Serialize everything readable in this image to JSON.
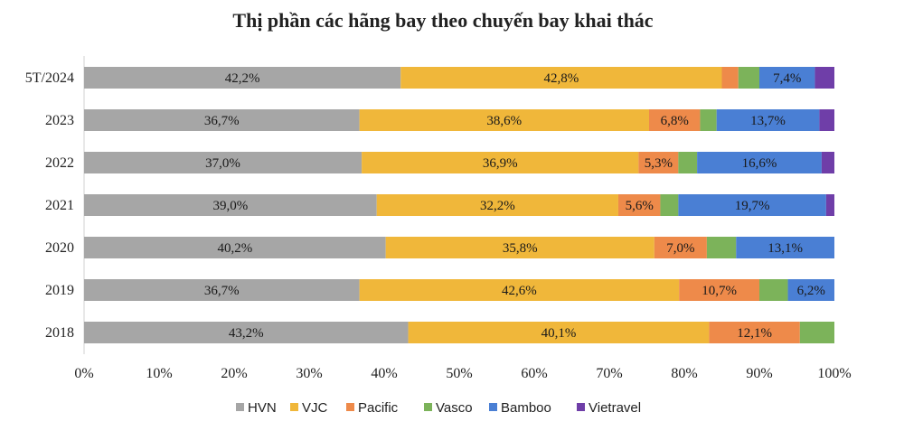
{
  "chart_data": {
    "type": "bar",
    "orientation": "horizontal",
    "stacked": true,
    "title": "Thị phần các hãng bay theo chuyến bay khai thác",
    "categories": [
      "5T/2024",
      "2023",
      "2022",
      "2021",
      "2020",
      "2019",
      "2018"
    ],
    "xlim": [
      0,
      100
    ],
    "x_ticks": [
      "0%",
      "10%",
      "20%",
      "30%",
      "40%",
      "50%",
      "60%",
      "70%",
      "80%",
      "90%",
      "100%"
    ],
    "legend_position": "bottom",
    "series": [
      {
        "name": "HVN",
        "color": "#a6a6a6",
        "values": [
          42.2,
          36.7,
          37.0,
          39.0,
          40.2,
          36.7,
          43.2
        ],
        "labels": [
          "42,2%",
          "36,7%",
          "37,0%",
          "39,0%",
          "40,2%",
          "36,7%",
          "43,2%"
        ]
      },
      {
        "name": "VJC",
        "color": "#f0b73a",
        "values": [
          42.8,
          38.6,
          36.9,
          32.2,
          35.8,
          42.6,
          40.1
        ],
        "labels": [
          "42,8%",
          "38,6%",
          "36,9%",
          "32,2%",
          "35,8%",
          "42,6%",
          "40,1%"
        ]
      },
      {
        "name": "Pacific",
        "color": "#ee8a4a",
        "values": [
          2.2,
          6.8,
          5.3,
          5.6,
          7.0,
          10.7,
          12.1
        ],
        "labels": [
          "",
          "6,8%",
          "5,3%",
          "5,6%",
          "7,0%",
          "10,7%",
          "12,1%"
        ]
      },
      {
        "name": "Vasco",
        "color": "#7cb35a",
        "values": [
          2.8,
          2.2,
          2.5,
          2.4,
          3.9,
          3.8,
          4.6
        ],
        "labels": [
          "",
          "",
          "",
          "",
          "",
          "",
          ""
        ]
      },
      {
        "name": "Bamboo",
        "color": "#4a7fd4",
        "values": [
          7.4,
          13.7,
          16.6,
          19.7,
          13.1,
          6.2,
          0
        ],
        "labels": [
          "7,4%",
          "13,7%",
          "16,6%",
          "19,7%",
          "13,1%",
          "6,2%",
          ""
        ]
      },
      {
        "name": "Vietravel",
        "color": "#6f3ea8",
        "values": [
          2.6,
          2.0,
          1.7,
          1.1,
          0,
          0,
          0
        ],
        "labels": [
          "",
          "",
          "",
          "",
          "",
          "",
          ""
        ]
      }
    ]
  }
}
